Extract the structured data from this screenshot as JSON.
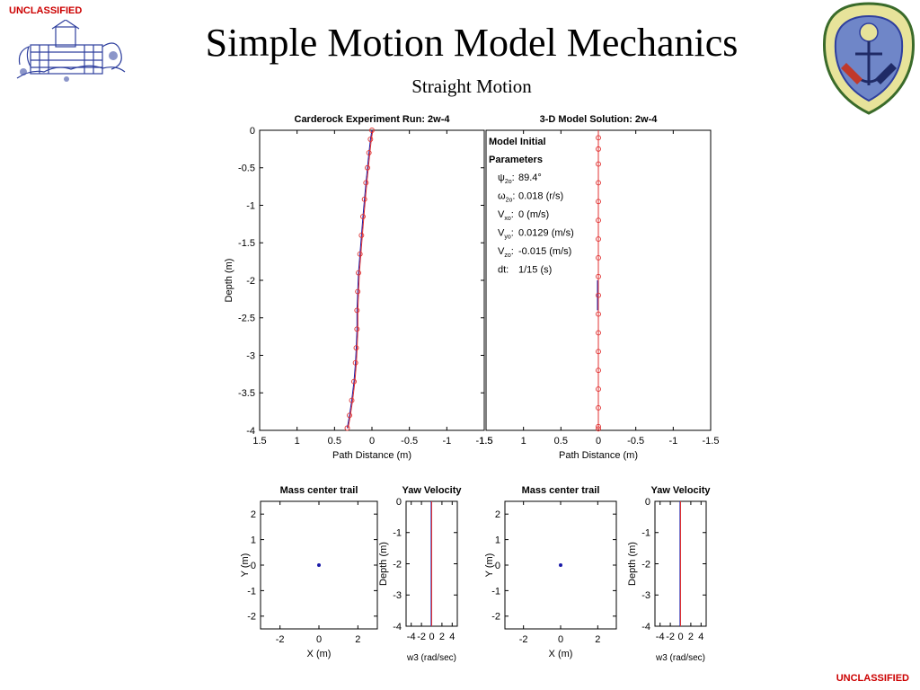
{
  "classification": {
    "top": "UNCLASSIFIED",
    "bottom": "UNCLASSIFIED"
  },
  "slide": {
    "title": "Simple Motion Model Mechanics",
    "subtitle": "Straight Motion"
  },
  "colors": {
    "classification": "#cc0000",
    "series_marker": "#e03030",
    "series_path": "#1a1aa8",
    "emblem": "#2e3f9e"
  },
  "chart_data": [
    {
      "type": "line",
      "title": "Carderock Experiment Run: 2w-4",
      "xlabel": "Path Distance (m)",
      "ylabel": "Depth (m)",
      "xlim": [
        1.5,
        -1.5
      ],
      "ylim": [
        -4,
        0
      ],
      "x_ticks": [
        "1.5",
        "1",
        "0.5",
        "0",
        "-0.5",
        "-1",
        "-1.5"
      ],
      "y_ticks": [
        "0",
        "-0.5",
        "-1",
        "-1.5",
        "-2",
        "-2.5",
        "-3",
        "-3.5",
        "-4"
      ],
      "series": [
        {
          "x": [
            0.0,
            0.02,
            0.04,
            0.06,
            0.08,
            0.1,
            0.12,
            0.14,
            0.16,
            0.18,
            0.19,
            0.2,
            0.2,
            0.21,
            0.22,
            0.24,
            0.27,
            0.3,
            0.33
          ],
          "y": [
            0.0,
            -0.12,
            -0.3,
            -0.5,
            -0.7,
            -0.92,
            -1.15,
            -1.4,
            -1.65,
            -1.9,
            -2.15,
            -2.4,
            -2.65,
            -2.9,
            -3.1,
            -3.35,
            -3.6,
            -3.8,
            -3.97
          ]
        }
      ]
    },
    {
      "type": "line",
      "title": "3-D Model Solution: 2w-4",
      "xlabel": "Path Distance (m)",
      "xlim": [
        1.5,
        -1.5
      ],
      "ylim": [
        -4,
        0
      ],
      "x_ticks": [
        "1.5",
        "1",
        "0.5",
        "0",
        "-0.5",
        "-1",
        "-1.5"
      ],
      "annotation": {
        "heading": [
          "Model Initial",
          "Parameters"
        ],
        "params": [
          {
            "symbol": "ψ",
            "sub": "2o",
            "value": "89.4°"
          },
          {
            "symbol": "ω",
            "sub": "2o",
            "value": "0.018 (r/s)"
          },
          {
            "symbol": "V",
            "sub": "xo",
            "value": "0 (m/s)"
          },
          {
            "symbol": "V",
            "sub": "yo",
            "value": "0.0129 (m/s)"
          },
          {
            "symbol": "V",
            "sub": "zo",
            "value": "-0.015 (m/s)"
          },
          {
            "symbol": "dt:",
            "sub": "",
            "value": "1/15 (s)"
          }
        ]
      },
      "series": [
        {
          "x": [
            0,
            0,
            0,
            0,
            0,
            0,
            0,
            0,
            0,
            0,
            0,
            0,
            0,
            0,
            0,
            0,
            0,
            0
          ],
          "y": [
            -0.1,
            -0.25,
            -0.45,
            -0.7,
            -0.95,
            -1.2,
            -1.45,
            -1.7,
            -1.95,
            -2.2,
            -2.45,
            -2.7,
            -2.95,
            -3.2,
            -3.45,
            -3.7,
            -3.95,
            -3.98
          ]
        }
      ]
    },
    {
      "type": "scatter",
      "title": "Mass center trail",
      "xlabel": "X (m)",
      "ylabel": "Y (m)",
      "xlim": [
        -3,
        3
      ],
      "ylim": [
        -2.5,
        2.5
      ],
      "x_ticks": [
        "-2",
        "0",
        "2"
      ],
      "y_ticks": [
        "2",
        "1",
        "0",
        "-1",
        "-2"
      ],
      "x": [
        0
      ],
      "y": [
        0
      ]
    },
    {
      "type": "line",
      "title": "Yaw Velocity",
      "xlabel": "w3 (rad/sec)",
      "ylabel": "Depth (m)",
      "xlim": [
        -5,
        5
      ],
      "ylim": [
        -4,
        0
      ],
      "x_ticks": [
        "-4",
        "-2",
        "0",
        "2",
        "4"
      ],
      "y_ticks": [
        "0",
        "-1",
        "-2",
        "-3",
        "-4"
      ],
      "series": [
        {
          "x": [
            0,
            0
          ],
          "y": [
            0,
            -4
          ]
        }
      ]
    },
    {
      "type": "scatter",
      "title": "Mass center trail",
      "xlabel": "X (m)",
      "ylabel": "Y (m)",
      "xlim": [
        -3,
        3
      ],
      "ylim": [
        -2.5,
        2.5
      ],
      "x_ticks": [
        "-2",
        "0",
        "2"
      ],
      "y_ticks": [
        "2",
        "1",
        "0",
        "-1",
        "-2"
      ],
      "x": [
        0
      ],
      "y": [
        0
      ]
    },
    {
      "type": "line",
      "title": "Yaw Velocity",
      "xlabel": "w3 (rad/sec)",
      "ylabel": "Depth (m)",
      "xlim": [
        -5,
        5
      ],
      "ylim": [
        -4,
        0
      ],
      "x_ticks": [
        "-4",
        "-2",
        "0",
        "2",
        "4"
      ],
      "y_ticks": [
        "0",
        "-1",
        "-2",
        "-3",
        "-4"
      ],
      "series": [
        {
          "x": [
            0,
            0
          ],
          "y": [
            0,
            -4
          ]
        }
      ]
    }
  ]
}
